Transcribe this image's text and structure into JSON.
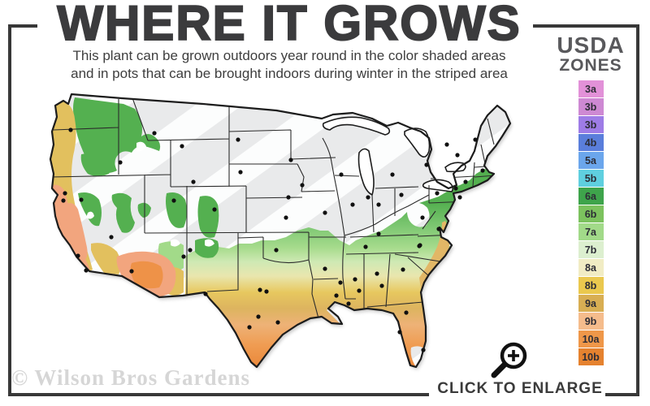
{
  "header": {
    "title": "WHERE IT GROWS",
    "subtitle_line1": "This plant can be grown outdoors year round in the color shaded areas",
    "subtitle_line2": "and in pots that can be brought indoors during winter in the striped area"
  },
  "legend": {
    "title_line1": "USDA",
    "title_line2": "ZONES",
    "zones": [
      {
        "label": "3a",
        "color": "#e291d8"
      },
      {
        "label": "3b",
        "color": "#ce89d3"
      },
      {
        "label": "3b",
        "color": "#9e7ce6"
      },
      {
        "label": "4b",
        "color": "#5a7edb"
      },
      {
        "label": "5a",
        "color": "#6ba6ec"
      },
      {
        "label": "5b",
        "color": "#5fcfdf"
      },
      {
        "label": "6a",
        "color": "#3ea44b"
      },
      {
        "label": "6b",
        "color": "#7cc25e"
      },
      {
        "label": "7a",
        "color": "#a2da89"
      },
      {
        "label": "7b",
        "color": "#dcefcf"
      },
      {
        "label": "8a",
        "color": "#f1ecc4"
      },
      {
        "label": "8b",
        "color": "#eac84e"
      },
      {
        "label": "9a",
        "color": "#d8ae53"
      },
      {
        "label": "9b",
        "color": "#f5bc8c"
      },
      {
        "label": "10a",
        "color": "#ef9749"
      },
      {
        "label": "10b",
        "color": "#e5822f"
      }
    ]
  },
  "footer": {
    "watermark": "© Wilson Bros Gardens",
    "enlarge_label": "CLICK TO ENLARGE",
    "magnifier_icon": "magnifier-plus-icon"
  },
  "palette": {
    "stripe_base": "#e9eaeb",
    "stripe_white": "#fcfdfd",
    "outline": "#1c1c1c",
    "state_line": "#2b2b2b",
    "dot": "#101010",
    "lake": "#ffffff",
    "green": "#54b050",
    "green_dark": "#3ea44b",
    "light_green": "#a2da89",
    "gold": "#e2c05e",
    "salmon": "#f2a57e",
    "orange": "#ee9248",
    "coastal_gold": "#e2b766",
    "white_patch": "#ffffff",
    "band": [
      "#54b050",
      "#54b050",
      "#7fc873",
      "#a6db8c",
      "#cfe9b4",
      "#e9e6ae",
      "#e7c85f",
      "#ddb45f",
      "#eeb277",
      "#ef9c52",
      "#ea8638"
    ]
  }
}
